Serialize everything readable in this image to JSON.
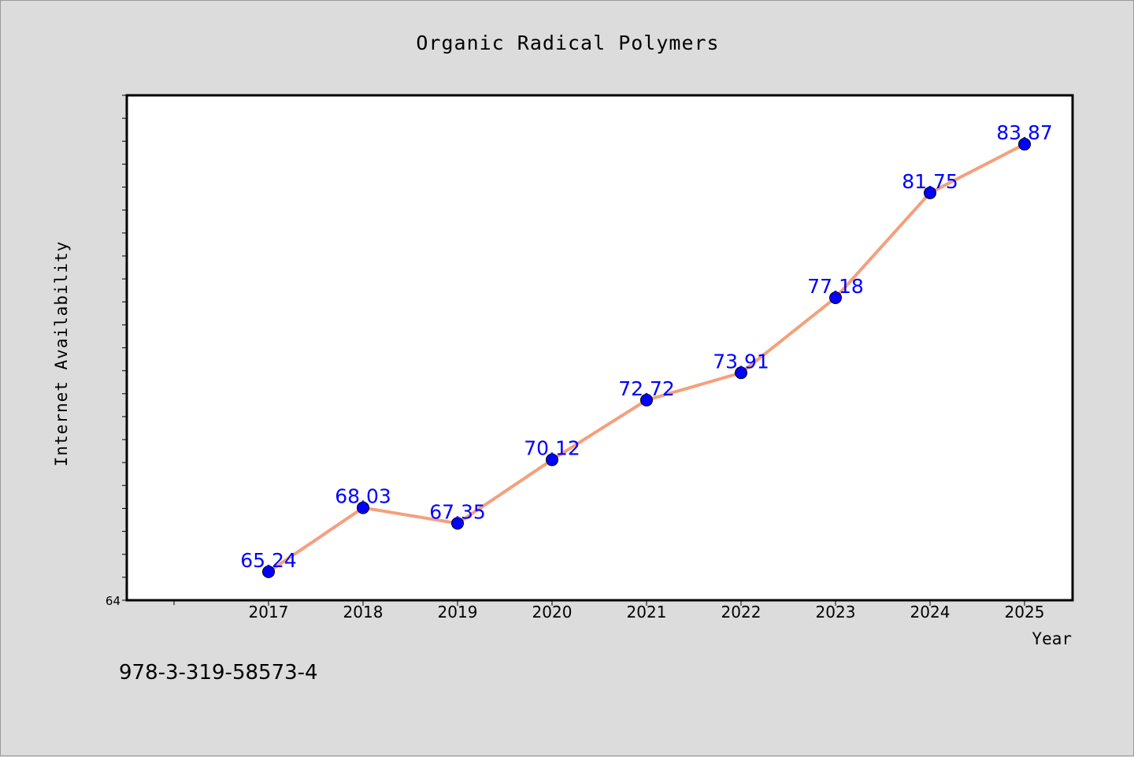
{
  "chart_data": {
    "type": "line",
    "title": "Organic Radical Polymers",
    "xlabel": "Year",
    "ylabel": "Internet Availability",
    "categories": [
      "2017",
      "2018",
      "2019",
      "2020",
      "2021",
      "2022",
      "2023",
      "2024",
      "2025"
    ],
    "values": [
      65.24,
      68.03,
      67.35,
      70.12,
      72.72,
      73.91,
      77.18,
      81.75,
      83.87
    ],
    "data_labels": [
      "65.24",
      "68.03",
      "67.35",
      "70.12",
      "72.72",
      "73.91",
      "77.18",
      "81.75",
      "83.87"
    ],
    "y_tick_labels": [
      "64"
    ],
    "ylim": [
      64,
      86
    ],
    "y_minor_step": 1,
    "grid": false,
    "colors": {
      "line": "#f4a07c",
      "marker": "#0000ff",
      "label": "#0000ff",
      "plot_background": "#ffffff",
      "figure_background": "#dcdcdc"
    }
  },
  "footnote": "978-3-319-58573-4"
}
